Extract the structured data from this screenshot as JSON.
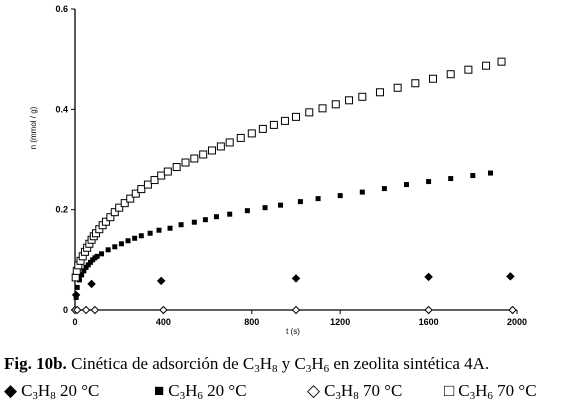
{
  "chart_data": {
    "type": "scatter",
    "title": "",
    "xlabel": "t (s)",
    "ylabel": "n (mmol / g)",
    "xlim": [
      0,
      2000
    ],
    "ylim": [
      0,
      0.6
    ],
    "x_ticks": [
      "0",
      "400",
      "800",
      "1200",
      "1600",
      "2000"
    ],
    "y_ticks": [
      "0",
      "0.2",
      "0.4",
      "0.6"
    ],
    "series": [
      {
        "name": "C3H8 20 °C",
        "marker": "diamond-filled",
        "points": [
          [
            5,
            0.03
          ],
          [
            75,
            0.052
          ],
          [
            390,
            0.058
          ],
          [
            1000,
            0.063
          ],
          [
            1600,
            0.066
          ],
          [
            1970,
            0.067
          ]
        ]
      },
      {
        "name": "C3H6 20 °C",
        "marker": "square-filled",
        "points": [
          [
            5,
            0.025
          ],
          [
            10,
            0.045
          ],
          [
            20,
            0.06
          ],
          [
            30,
            0.07
          ],
          [
            40,
            0.078
          ],
          [
            50,
            0.085
          ],
          [
            60,
            0.09
          ],
          [
            70,
            0.095
          ],
          [
            80,
            0.1
          ],
          [
            90,
            0.104
          ],
          [
            100,
            0.107
          ],
          [
            120,
            0.112
          ],
          [
            150,
            0.12
          ],
          [
            180,
            0.126
          ],
          [
            210,
            0.132
          ],
          [
            240,
            0.138
          ],
          [
            270,
            0.143
          ],
          [
            300,
            0.148
          ],
          [
            340,
            0.153
          ],
          [
            380,
            0.159
          ],
          [
            430,
            0.163
          ],
          [
            480,
            0.17
          ],
          [
            540,
            0.175
          ],
          [
            590,
            0.18
          ],
          [
            640,
            0.186
          ],
          [
            700,
            0.191
          ],
          [
            780,
            0.198
          ],
          [
            860,
            0.204
          ],
          [
            930,
            0.209
          ],
          [
            1020,
            0.216
          ],
          [
            1100,
            0.222
          ],
          [
            1200,
            0.228
          ],
          [
            1300,
            0.235
          ],
          [
            1400,
            0.242
          ],
          [
            1500,
            0.25
          ],
          [
            1600,
            0.256
          ],
          [
            1700,
            0.262
          ],
          [
            1800,
            0.268
          ],
          [
            1880,
            0.273
          ]
        ]
      },
      {
        "name": "C3H8 70 °C",
        "marker": "diamond-open",
        "points": [
          [
            0,
            0.0
          ],
          [
            10,
            0.0
          ],
          [
            50,
            0.0
          ],
          [
            90,
            0.0
          ],
          [
            400,
            0.0
          ],
          [
            1000,
            0.0
          ],
          [
            1600,
            0.0
          ],
          [
            1980,
            0.0
          ]
        ]
      },
      {
        "name": "C3H6 70 °C",
        "marker": "square-open",
        "points": [
          [
            3,
            0.065
          ],
          [
            8,
            0.078
          ],
          [
            15,
            0.089
          ],
          [
            25,
            0.098
          ],
          [
            35,
            0.107
          ],
          [
            45,
            0.116
          ],
          [
            55,
            0.124
          ],
          [
            65,
            0.132
          ],
          [
            75,
            0.14
          ],
          [
            85,
            0.147
          ],
          [
            95,
            0.153
          ],
          [
            110,
            0.161
          ],
          [
            125,
            0.169
          ],
          [
            140,
            0.176
          ],
          [
            160,
            0.185
          ],
          [
            180,
            0.195
          ],
          [
            200,
            0.204
          ],
          [
            225,
            0.213
          ],
          [
            250,
            0.222
          ],
          [
            275,
            0.232
          ],
          [
            300,
            0.241
          ],
          [
            330,
            0.25
          ],
          [
            360,
            0.259
          ],
          [
            390,
            0.268
          ],
          [
            420,
            0.276
          ],
          [
            460,
            0.285
          ],
          [
            500,
            0.294
          ],
          [
            540,
            0.302
          ],
          [
            580,
            0.31
          ],
          [
            620,
            0.318
          ],
          [
            660,
            0.326
          ],
          [
            700,
            0.334
          ],
          [
            750,
            0.343
          ],
          [
            800,
            0.352
          ],
          [
            850,
            0.361
          ],
          [
            900,
            0.369
          ],
          [
            950,
            0.377
          ],
          [
            1000,
            0.385
          ],
          [
            1060,
            0.394
          ],
          [
            1120,
            0.402
          ],
          [
            1180,
            0.41
          ],
          [
            1240,
            0.418
          ],
          [
            1300,
            0.425
          ],
          [
            1380,
            0.434
          ],
          [
            1460,
            0.443
          ],
          [
            1540,
            0.452
          ],
          [
            1620,
            0.461
          ],
          [
            1700,
            0.47
          ],
          [
            1780,
            0.479
          ],
          [
            1860,
            0.487
          ],
          [
            1930,
            0.495
          ]
        ]
      }
    ]
  },
  "caption": {
    "label": "Fig. 10b.",
    "text_part1": " Cinética de adsorción de C",
    "sub1": "3",
    "text_part2": "H",
    "sub2": "8",
    "text_part3": " y C",
    "sub3": "3",
    "text_part4": "H",
    "sub4": "6",
    "text_part5": " en zeolita sintética 4A."
  },
  "legend": [
    {
      "symbol": "◆",
      "c": "C",
      "n1": "3",
      "h": "H",
      "n2": "8",
      "temp": " 20 °C"
    },
    {
      "symbol": "■",
      "c": "C",
      "n1": "3",
      "h": "H",
      "n2": "6",
      "temp": " 20 °C"
    },
    {
      "symbol": "◇",
      "c": "C",
      "n1": "3",
      "h": "H",
      "n2": "8",
      "temp": " 70 °C"
    },
    {
      "symbol": "□",
      "c": "C",
      "n1": "3",
      "h": "H",
      "n2": "6",
      "temp": " 70 °C"
    }
  ]
}
